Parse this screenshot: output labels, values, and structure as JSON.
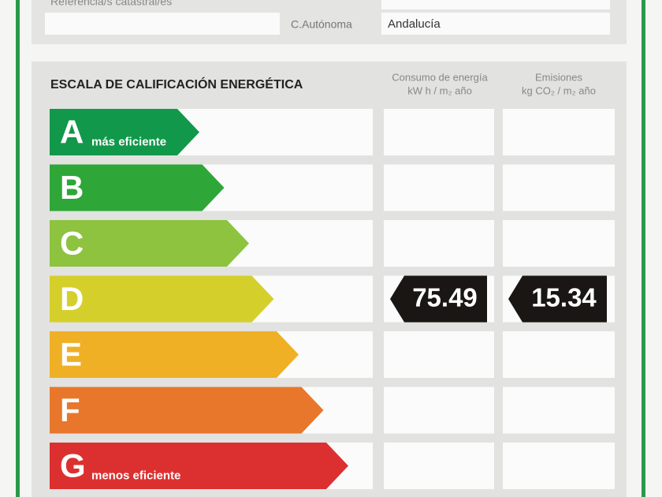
{
  "form": {
    "fields": [
      {
        "label": "Referencia/s catastral/es"
      },
      {
        "label": "C.Autónoma",
        "value": "Andalucía"
      }
    ]
  },
  "scale": {
    "title": "ESCALA DE CALIFICACIÓN ENERGÉTICA",
    "columns": [
      {
        "title": "Consumo de energía",
        "unit": "kW h / m₂ año"
      },
      {
        "title": "Emisiones",
        "unit": "kg CO₂ / m₂ año"
      }
    ],
    "ratings": [
      {
        "letter": "A",
        "note": "más eficiente",
        "color": "#11984a"
      },
      {
        "letter": "B",
        "color": "#2ea638"
      },
      {
        "letter": "C",
        "color": "#8dc33f"
      },
      {
        "letter": "D",
        "color": "#d5cf2b"
      },
      {
        "letter": "E",
        "color": "#efb025"
      },
      {
        "letter": "F",
        "color": "#e8772c"
      },
      {
        "letter": "G",
        "note": "menos eficiente",
        "color": "#dc3030"
      }
    ],
    "result": {
      "rating": "D",
      "consumption": 75.49,
      "emissions": 15.34
    }
  }
}
